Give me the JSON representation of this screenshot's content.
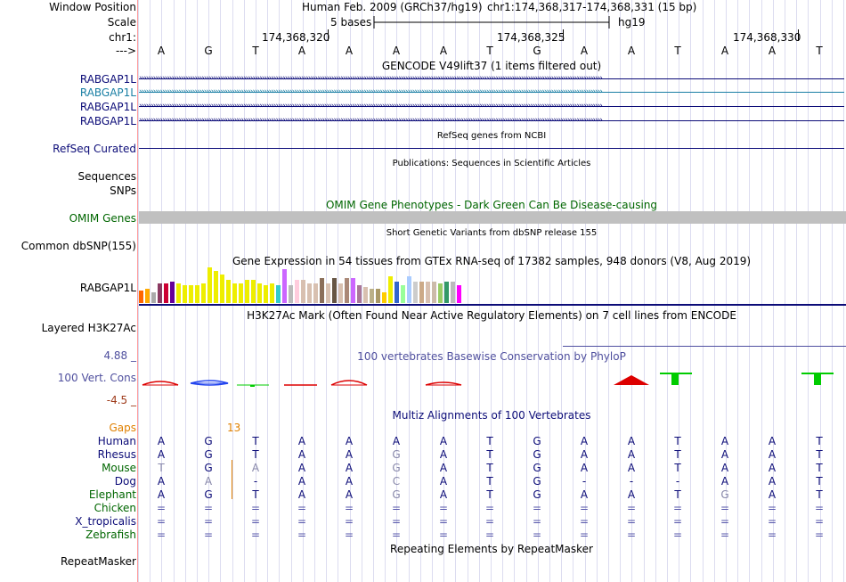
{
  "labels": {
    "window_position": "Window Position",
    "scale": "Scale",
    "chr": "chr1:",
    "strand": "--->",
    "gencode_genes": [
      "RABGAP1L",
      "RABGAP1L",
      "RABGAP1L",
      "RABGAP1L"
    ],
    "refseq": "RefSeq Curated",
    "sequences": "Sequences",
    "snps": "SNPs",
    "omim": "OMIM Genes",
    "common_dbsnp": "Common dbSNP(155)",
    "gtex_gene": "RABGAP1L",
    "h3k27ac": "Layered H3K27Ac",
    "cons_max": "4.88 _",
    "cons_label": "100 Vert. Cons",
    "cons_min": "-4.5 _",
    "gaps": "Gaps",
    "species": [
      "Human",
      "Rhesus",
      "Mouse",
      "Dog",
      "Elephant",
      "Chicken",
      "X_tropicalis",
      "Zebrafish"
    ],
    "repeatmasker": "RepeatMasker"
  },
  "header": {
    "assembly": "Human Feb. 2009 (GRCh37/hg19)",
    "position": "chr1:174,368,317-174,368,331 (15 bp)",
    "scale_text": "5 bases",
    "db": "hg19",
    "coords": [
      "174,368,320",
      "174,368,325",
      "174,368,330"
    ]
  },
  "sequence": [
    "A",
    "G",
    "T",
    "A",
    "A",
    "A",
    "A",
    "T",
    "G",
    "A",
    "A",
    "T",
    "A",
    "A",
    "T"
  ],
  "track_titles": {
    "gencode": "GENCODE V49lift37 (1 items filtered out)",
    "refseq": "RefSeq genes from NCBI",
    "publications": "Publications: Sequences in Scientific Articles",
    "omim": "OMIM Gene Phenotypes - Dark Green Can Be Disease-causing",
    "dbsnp": "Short Genetic Variants from dbSNP release 155",
    "gtex": "Gene Expression in 54 tissues from GTEx RNA-seq of 17382 samples, 948 donors (V8, Aug 2019)",
    "h3k27ac": "H3K27Ac Mark (Often Found Near Active Regulatory Elements) on 7 cell lines from ENCODE",
    "phylop": "100 vertebrates Basewise Conservation by PhyloP",
    "multiz": "Multiz Alignments of 100 Vertebrates",
    "repeatmasker": "Repeating Elements by RepeatMasker"
  },
  "gap_count": "13",
  "alignment": {
    "Human": [
      "A",
      "G",
      "T",
      "A",
      "A",
      "A",
      "A",
      "T",
      "G",
      "A",
      "A",
      "T",
      "A",
      "A",
      "T"
    ],
    "Rhesus": [
      "A",
      "G",
      "T",
      "A",
      "A",
      "G",
      "A",
      "T",
      "G",
      "A",
      "A",
      "T",
      "A",
      "A",
      "T"
    ],
    "Mouse": [
      "T",
      "G",
      "A",
      "A",
      "A",
      "G",
      "A",
      "T",
      "G",
      "A",
      "A",
      "T",
      "A",
      "A",
      "T"
    ],
    "Dog": [
      "A",
      "A",
      "-",
      "A",
      "A",
      "C",
      "A",
      "T",
      "G",
      "-",
      "-",
      "-",
      "A",
      "A",
      "T"
    ],
    "Elephant": [
      "A",
      "G",
      "T",
      "A",
      "A",
      "G",
      "A",
      "T",
      "G",
      "A",
      "A",
      "T",
      "G",
      "A",
      "T"
    ],
    "Chicken": [
      "=",
      "=",
      "=",
      "=",
      "=",
      "=",
      "=",
      "=",
      "=",
      "=",
      "=",
      "=",
      "=",
      "=",
      "="
    ],
    "X_tropicalis": [
      "=",
      "=",
      "=",
      "=",
      "=",
      "=",
      "=",
      "=",
      "=",
      "=",
      "=",
      "=",
      "=",
      "=",
      "="
    ],
    "Zebrafish": [
      "=",
      "=",
      "=",
      "=",
      "=",
      "=",
      "=",
      "=",
      "=",
      "=",
      "=",
      "=",
      "=",
      "=",
      "="
    ]
  },
  "gtex_expression": [
    {
      "color": "#ff6600",
      "value": 0.35
    },
    {
      "color": "#ffaa00",
      "value": 0.4
    },
    {
      "color": "#aaaaaa",
      "value": 0.3
    },
    {
      "color": "#8b3a62",
      "value": 0.55
    },
    {
      "color": "#cc0033",
      "value": 0.55
    },
    {
      "color": "#660099",
      "value": 0.6
    },
    {
      "color": "#eeee00",
      "value": 0.55
    },
    {
      "color": "#eeee00",
      "value": 0.5
    },
    {
      "color": "#eeee00",
      "value": 0.5
    },
    {
      "color": "#eeee00",
      "value": 0.5
    },
    {
      "color": "#eeee00",
      "value": 0.55
    },
    {
      "color": "#eeee00",
      "value": 1.0
    },
    {
      "color": "#eeee00",
      "value": 0.9
    },
    {
      "color": "#eeee00",
      "value": 0.8
    },
    {
      "color": "#eeee00",
      "value": 0.65
    },
    {
      "color": "#eeee00",
      "value": 0.55
    },
    {
      "color": "#eeee00",
      "value": 0.55
    },
    {
      "color": "#eeee00",
      "value": 0.65
    },
    {
      "color": "#eeee00",
      "value": 0.65
    },
    {
      "color": "#eeee00",
      "value": 0.55
    },
    {
      "color": "#eeee00",
      "value": 0.5
    },
    {
      "color": "#eeee00",
      "value": 0.55
    },
    {
      "color": "#33cccc",
      "value": 0.5
    },
    {
      "color": "#cc66ff",
      "value": 0.95
    },
    {
      "color": "#bbbbbb",
      "value": 0.5
    },
    {
      "color": "#ffccdd",
      "value": 0.65
    },
    {
      "color": "#d8c0b0",
      "value": 0.65
    },
    {
      "color": "#d8c0b0",
      "value": 0.55
    },
    {
      "color": "#d8c0b0",
      "value": 0.55
    },
    {
      "color": "#8b6f5a",
      "value": 0.7
    },
    {
      "color": "#d8c0b0",
      "value": 0.55
    },
    {
      "color": "#665544",
      "value": 0.7
    },
    {
      "color": "#d8c0b0",
      "value": 0.55
    },
    {
      "color": "#aa8877",
      "value": 0.7
    },
    {
      "color": "#cc66ff",
      "value": 0.7
    },
    {
      "color": "#aa7799",
      "value": 0.5
    },
    {
      "color": "#d8c0b0",
      "value": 0.45
    },
    {
      "color": "#bbb088",
      "value": 0.4
    },
    {
      "color": "#aa9966",
      "value": 0.4
    },
    {
      "color": "#ffcc00",
      "value": 0.3
    },
    {
      "color": "#eeee00",
      "value": 0.75
    },
    {
      "color": "#3366cc",
      "value": 0.6
    },
    {
      "color": "#99ff99",
      "value": 0.5
    },
    {
      "color": "#aaccff",
      "value": 0.75
    },
    {
      "color": "#cccccc",
      "value": 0.6
    },
    {
      "color": "#ccaa88",
      "value": 0.6
    },
    {
      "color": "#d8c0b0",
      "value": 0.6
    },
    {
      "color": "#ccbbaa",
      "value": 0.6
    },
    {
      "color": "#99cc66",
      "value": 0.55
    },
    {
      "color": "#339966",
      "value": 0.6
    },
    {
      "color": "#bbbbbb",
      "value": 0.6
    },
    {
      "color": "#ff00ff",
      "value": 0.5
    }
  ],
  "colors": {
    "gene": "#0c0c78",
    "gene_highlight": "#1a7fa4",
    "omim": "#006600",
    "phylop_title": "#4f4f9e",
    "cons_neg": "#9e3a1a",
    "cons_pos_bar": "#00cc00",
    "cons_neg_bar": "#dd0000",
    "gaps": "#e08000"
  }
}
